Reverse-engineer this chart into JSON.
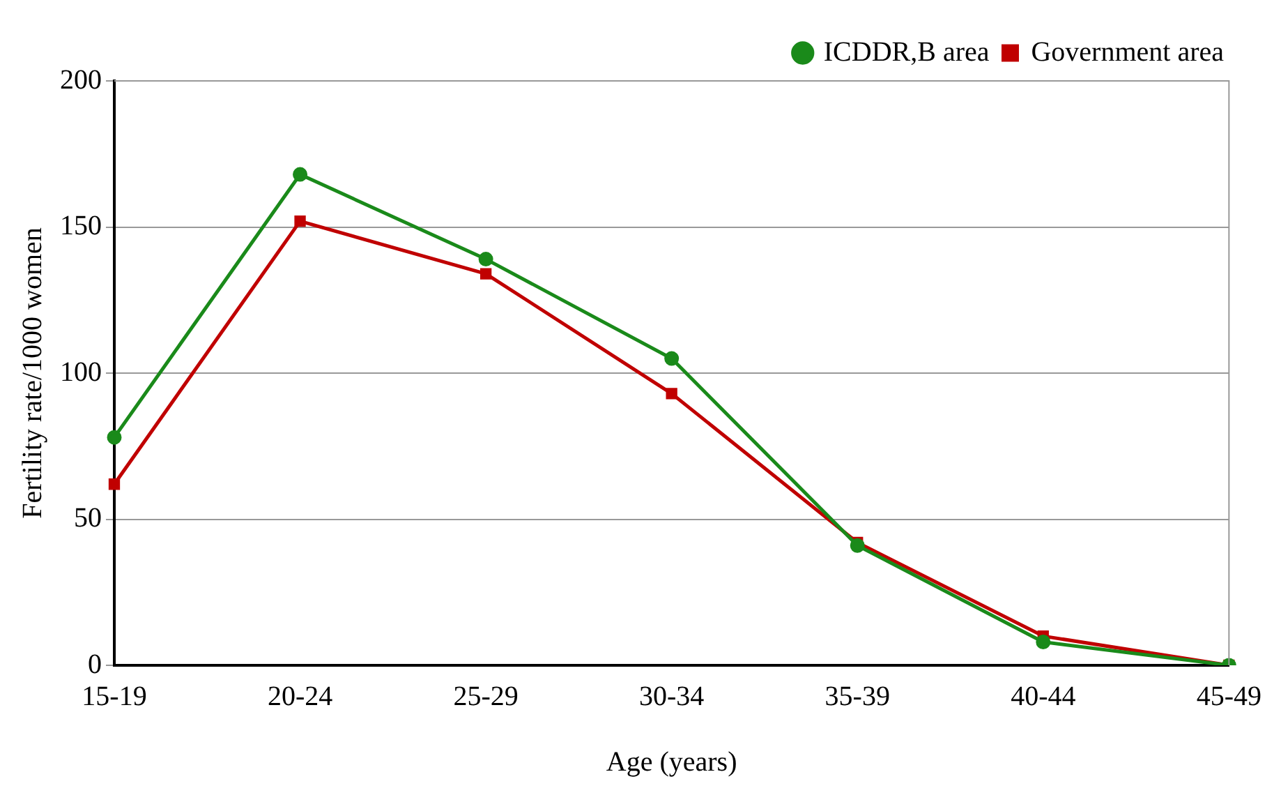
{
  "chart_data": {
    "type": "line",
    "xlabel": "Age (years)",
    "ylabel": "Fertility rate/1000 women",
    "categories": [
      "15-19",
      "20-24",
      "25-29",
      "30-34",
      "35-39",
      "40-44",
      "45-49"
    ],
    "series": [
      {
        "name": "ICDDR,B area",
        "color": "#1a8a1a",
        "marker": "circle",
        "values": [
          78,
          168,
          139,
          105,
          41,
          8,
          0
        ]
      },
      {
        "name": "Government area",
        "color": "#c00000",
        "marker": "square",
        "values": [
          62,
          152,
          134,
          93,
          42,
          10,
          0
        ]
      }
    ],
    "ylim": [
      0,
      200
    ],
    "yticks": [
      0,
      50,
      100,
      150,
      200
    ],
    "grid": "y",
    "legend": "top right",
    "line_style": "solid"
  }
}
